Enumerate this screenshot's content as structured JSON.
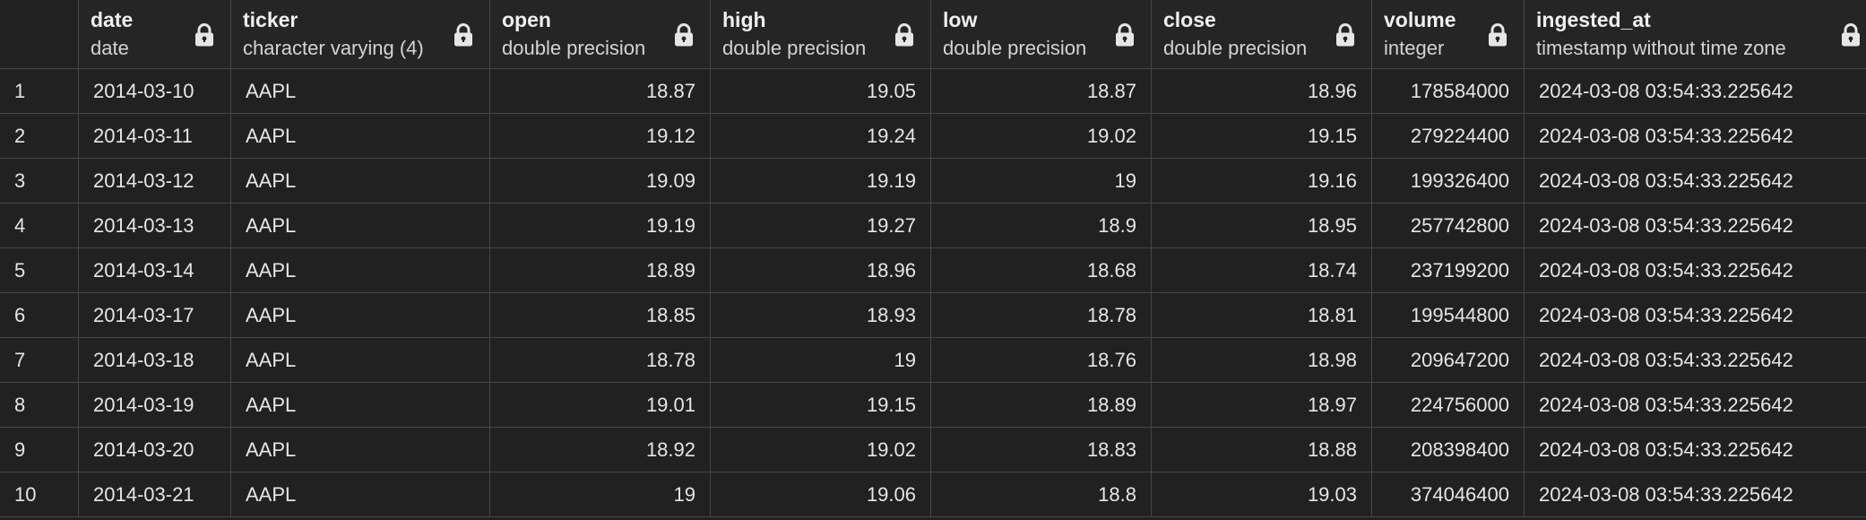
{
  "columns": [
    {
      "name": "date",
      "type": "date",
      "align": "left"
    },
    {
      "name": "ticker",
      "type": "character varying (4)",
      "align": "left"
    },
    {
      "name": "open",
      "type": "double precision",
      "align": "right"
    },
    {
      "name": "high",
      "type": "double precision",
      "align": "right"
    },
    {
      "name": "low",
      "type": "double precision",
      "align": "right"
    },
    {
      "name": "close",
      "type": "double precision",
      "align": "right"
    },
    {
      "name": "volume",
      "type": "integer",
      "align": "right"
    },
    {
      "name": "ingested_at",
      "type": "timestamp without time zone",
      "align": "left"
    }
  ],
  "lock_icon": "lock-icon",
  "rows": [
    [
      "1",
      "2014-03-10",
      "AAPL",
      "18.87",
      "19.05",
      "18.87",
      "18.96",
      "178584000",
      "2024-03-08 03:54:33.225642"
    ],
    [
      "2",
      "2014-03-11",
      "AAPL",
      "19.12",
      "19.24",
      "19.02",
      "19.15",
      "279224400",
      "2024-03-08 03:54:33.225642"
    ],
    [
      "3",
      "2014-03-12",
      "AAPL",
      "19.09",
      "19.19",
      "19",
      "19.16",
      "199326400",
      "2024-03-08 03:54:33.225642"
    ],
    [
      "4",
      "2014-03-13",
      "AAPL",
      "19.19",
      "19.27",
      "18.9",
      "18.95",
      "257742800",
      "2024-03-08 03:54:33.225642"
    ],
    [
      "5",
      "2014-03-14",
      "AAPL",
      "18.89",
      "18.96",
      "18.68",
      "18.74",
      "237199200",
      "2024-03-08 03:54:33.225642"
    ],
    [
      "6",
      "2014-03-17",
      "AAPL",
      "18.85",
      "18.93",
      "18.78",
      "18.81",
      "199544800",
      "2024-03-08 03:54:33.225642"
    ],
    [
      "7",
      "2014-03-18",
      "AAPL",
      "18.78",
      "19",
      "18.76",
      "18.98",
      "209647200",
      "2024-03-08 03:54:33.225642"
    ],
    [
      "8",
      "2014-03-19",
      "AAPL",
      "19.01",
      "19.15",
      "18.89",
      "18.97",
      "224756000",
      "2024-03-08 03:54:33.225642"
    ],
    [
      "9",
      "2014-03-20",
      "AAPL",
      "18.92",
      "19.02",
      "18.83",
      "18.88",
      "208398400",
      "2024-03-08 03:54:33.225642"
    ],
    [
      "10",
      "2014-03-21",
      "AAPL",
      "19",
      "19.06",
      "18.8",
      "19.03",
      "374046400",
      "2024-03-08 03:54:33.225642"
    ]
  ]
}
